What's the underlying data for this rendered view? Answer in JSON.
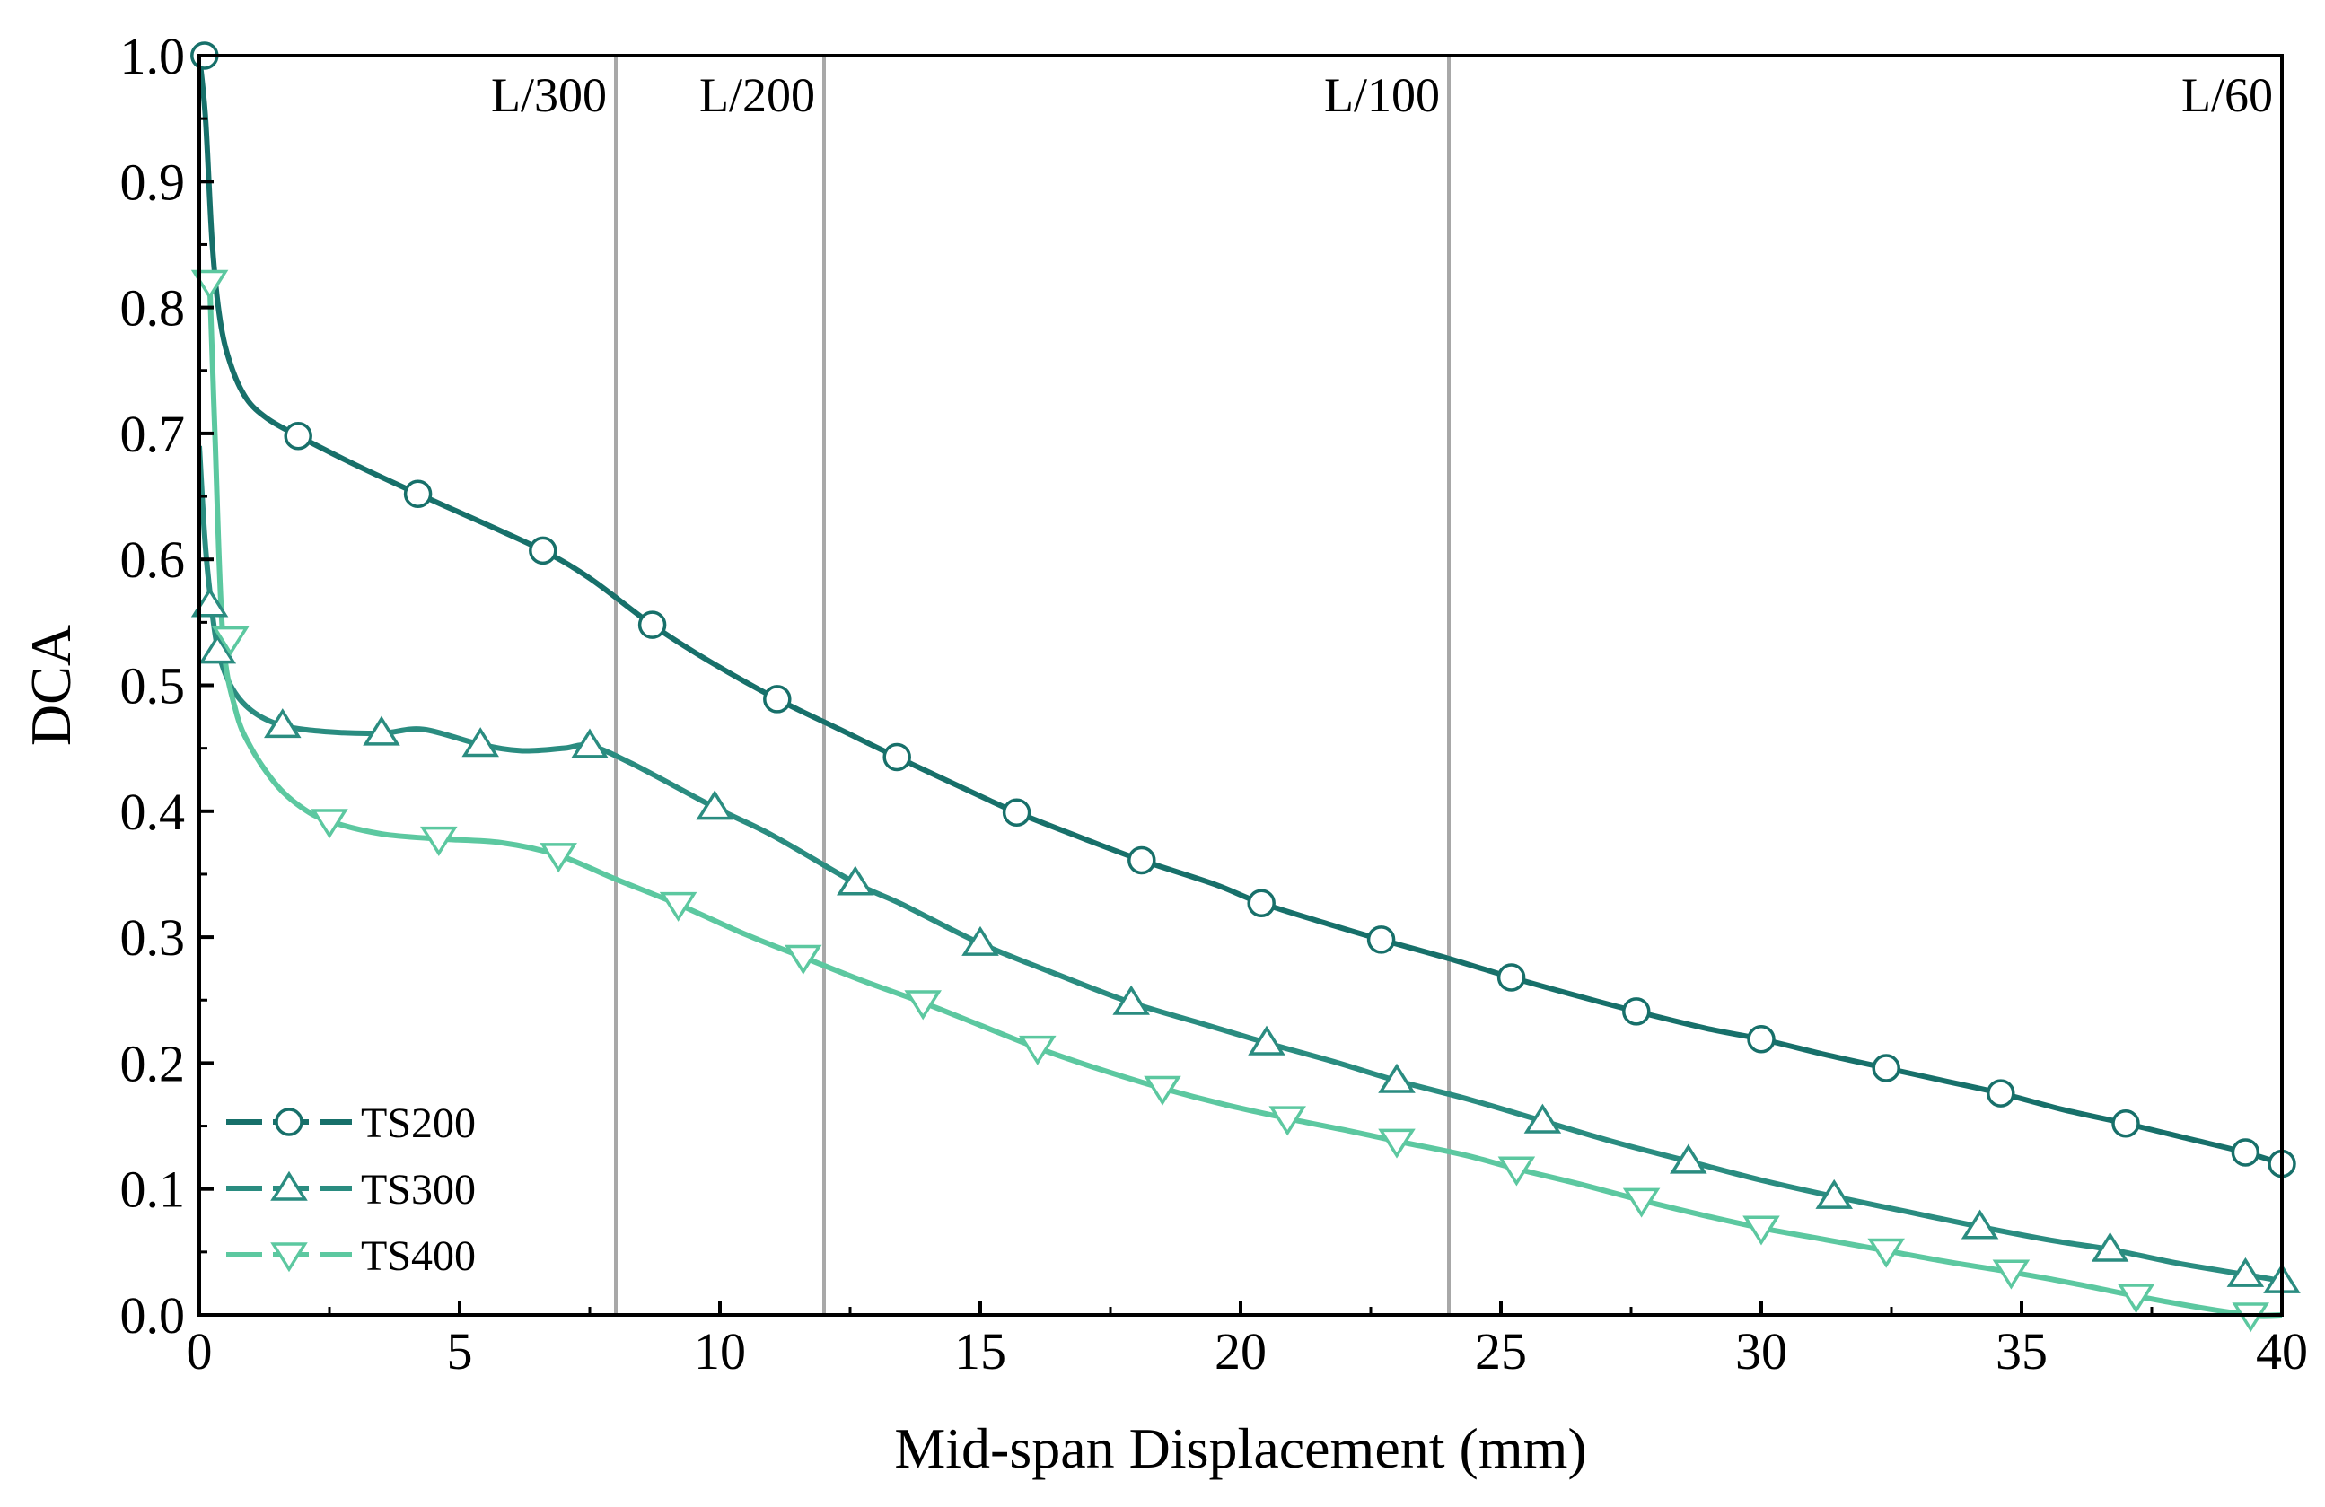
{
  "chart_data": {
    "type": "line",
    "title": "",
    "xlabel": "Mid-span Displacement (mm)",
    "ylabel": "DCA",
    "xlim": [
      0,
      40
    ],
    "ylim": [
      0,
      1.0
    ],
    "xticks": [
      0,
      5,
      10,
      15,
      20,
      25,
      30,
      35,
      40
    ],
    "yticks": [
      0.0,
      0.1,
      0.2,
      0.3,
      0.4,
      0.5,
      0.6,
      0.7,
      0.8,
      0.9,
      1.0
    ],
    "xtick_labels": [
      "0",
      "5",
      "10",
      "15",
      "20",
      "25",
      "30",
      "35",
      "40"
    ],
    "ytick_labels": [
      "0.0",
      "0.1",
      "0.2",
      "0.3",
      "0.4",
      "0.5",
      "0.6",
      "0.7",
      "0.8",
      "0.9",
      "1.0"
    ],
    "grid": false,
    "legend_position": "bottom-left",
    "reference_lines": [
      {
        "x": 8,
        "label": "L/300"
      },
      {
        "x": 12,
        "label": "L/200"
      },
      {
        "x": 24,
        "label": "L/100"
      },
      {
        "x": 40,
        "label": "L/60"
      }
    ],
    "series": [
      {
        "name": "TS200",
        "color": "#17706a",
        "marker": "circle",
        "x": [
          0,
          0.12,
          0.25,
          0.4,
          0.6,
          0.9,
          1.3,
          1.9,
          3.0,
          4.2,
          5.5,
          6.6,
          7.5,
          8.7,
          9.8,
          11.1,
          12.3,
          13.4,
          15.0,
          15.7,
          17.0,
          18.1,
          19.5,
          20.4,
          21.8,
          22.7,
          24.0,
          25.2,
          26.5,
          27.6,
          29.0,
          30.0,
          31.3,
          32.4,
          33.5,
          34.6,
          35.8,
          37.0,
          38.2,
          39.3,
          40.0
        ],
        "y": [
          1.0,
          0.95,
          0.85,
          0.79,
          0.755,
          0.728,
          0.712,
          0.698,
          0.675,
          0.652,
          0.628,
          0.607,
          0.585,
          0.548,
          0.519,
          0.489,
          0.465,
          0.443,
          0.412,
          0.399,
          0.378,
          0.361,
          0.342,
          0.327,
          0.309,
          0.298,
          0.283,
          0.268,
          0.253,
          0.241,
          0.227,
          0.219,
          0.206,
          0.196,
          0.186,
          0.176,
          0.163,
          0.152,
          0.14,
          0.129,
          0.12
        ],
        "marker_x": [
          0.1,
          1.9,
          4.2,
          6.6,
          8.7,
          11.1,
          13.4,
          15.7,
          18.1,
          20.4,
          22.7,
          25.2,
          27.6,
          30.0,
          32.4,
          34.6,
          37.0,
          39.3,
          40.0
        ],
        "marker_y": [
          1.0,
          0.698,
          0.652,
          0.607,
          0.548,
          0.489,
          0.443,
          0.399,
          0.361,
          0.327,
          0.298,
          0.268,
          0.241,
          0.219,
          0.196,
          0.176,
          0.152,
          0.129,
          0.12
        ]
      },
      {
        "name": "TS300",
        "color": "#2a8c80",
        "marker": "triangle-up",
        "x": [
          0,
          0.1,
          0.2,
          0.35,
          0.6,
          1.0,
          1.6,
          2.5,
          3.5,
          4.3,
          5.4,
          6.2,
          7.0,
          7.5,
          8.3,
          9.9,
          11.0,
          12.6,
          13.5,
          15.0,
          16.5,
          17.9,
          19.2,
          20.5,
          21.8,
          23.0,
          24.4,
          25.8,
          27.2,
          28.6,
          30.0,
          31.4,
          32.8,
          34.2,
          35.6,
          36.7,
          38.0,
          39.3,
          40.0
        ],
        "y": [
          0.69,
          0.62,
          0.575,
          0.53,
          0.5,
          0.48,
          0.468,
          0.463,
          0.462,
          0.465,
          0.453,
          0.448,
          0.45,
          0.452,
          0.438,
          0.403,
          0.381,
          0.343,
          0.326,
          0.295,
          0.27,
          0.248,
          0.232,
          0.216,
          0.201,
          0.186,
          0.171,
          0.154,
          0.137,
          0.122,
          0.107,
          0.094,
          0.082,
          0.07,
          0.059,
          0.052,
          0.041,
          0.032,
          0.027
        ],
        "marker_x": [
          0.2,
          0.35,
          1.6,
          3.5,
          5.4,
          7.5,
          9.9,
          12.6,
          15.0,
          17.9,
          20.5,
          23.0,
          25.8,
          28.6,
          31.4,
          34.2,
          36.7,
          39.3,
          40.0
        ],
        "marker_y": [
          0.564,
          0.527,
          0.468,
          0.462,
          0.453,
          0.452,
          0.403,
          0.343,
          0.295,
          0.248,
          0.216,
          0.186,
          0.154,
          0.122,
          0.094,
          0.07,
          0.052,
          0.032,
          0.027
        ]
      },
      {
        "name": "TS400",
        "color": "#5cc8a0",
        "marker": "triangle-down",
        "x": [
          0.2,
          0.3,
          0.45,
          0.7,
          1.0,
          1.5,
          2.0,
          2.5,
          3.5,
          4.6,
          5.8,
          6.9,
          8.0,
          9.2,
          10.5,
          11.6,
          12.7,
          13.9,
          15.0,
          16.1,
          17.3,
          18.5,
          19.7,
          20.9,
          22.1,
          23.0,
          24.3,
          25.3,
          26.5,
          27.7,
          28.9,
          30.0,
          31.2,
          32.4,
          33.6,
          34.8,
          36.0,
          37.2,
          38.4,
          39.4,
          40.0
        ],
        "y": [
          0.82,
          0.7,
          0.54,
          0.48,
          0.45,
          0.42,
          0.402,
          0.392,
          0.382,
          0.378,
          0.375,
          0.365,
          0.346,
          0.326,
          0.302,
          0.284,
          0.266,
          0.248,
          0.23,
          0.212,
          0.195,
          0.18,
          0.167,
          0.156,
          0.146,
          0.138,
          0.127,
          0.116,
          0.104,
          0.091,
          0.079,
          0.069,
          0.06,
          0.051,
          0.042,
          0.034,
          0.025,
          0.015,
          0.006,
          0.0,
          0.0
        ],
        "marker_x": [
          0.2,
          0.6,
          2.5,
          4.6,
          6.9,
          9.2,
          11.6,
          13.9,
          16.1,
          18.5,
          20.9,
          23.0,
          25.3,
          27.7,
          30.0,
          32.4,
          34.8,
          37.2,
          39.4
        ],
        "marker_y": [
          0.82,
          0.537,
          0.392,
          0.378,
          0.365,
          0.326,
          0.284,
          0.248,
          0.212,
          0.18,
          0.156,
          0.138,
          0.116,
          0.091,
          0.069,
          0.051,
          0.034,
          0.015,
          0.0
        ]
      }
    ]
  }
}
